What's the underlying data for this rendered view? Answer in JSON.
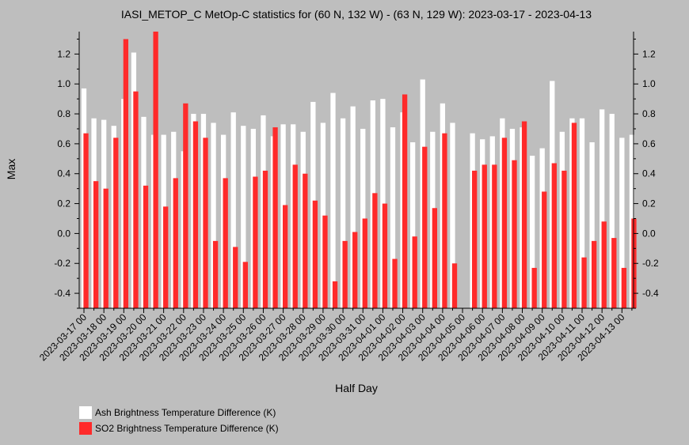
{
  "chart_data": {
    "type": "bar",
    "title": "IASI_METOP_C MetOp-C statistics for (60 N, 132 W) - (63 N, 129 W): 2023-03-17 - 2023-04-13",
    "xlabel": "Half Day",
    "ylabel": "Max",
    "ylim": [
      -0.5,
      1.35
    ],
    "yticks": [
      "-0.4",
      "-0.2",
      "0.0",
      "0.2",
      "0.4",
      "0.6",
      "0.8",
      "1.0",
      "1.2"
    ],
    "x_tick_labels": [
      "2023-03-17 00",
      "2023-03-18 00",
      "2023-03-19 00",
      "2023-03-20 00",
      "2023-03-21 00",
      "2023-03-22 00",
      "2023-03-23 00",
      "2023-03-24 00",
      "2023-03-25 00",
      "2023-03-26 00",
      "2023-03-27 00",
      "2023-03-28 00",
      "2023-03-29 00",
      "2023-03-30 00",
      "2023-03-31 00",
      "2023-04-01 00",
      "2023-04-02 00",
      "2023-04-03 00",
      "2023-04-04 00",
      "2023-04-05 00",
      "2023-04-06 00",
      "2023-04-07 00",
      "2023-04-08 00",
      "2023-04-09 00",
      "2023-04-10 00",
      "2023-04-11 00",
      "2023-04-12 00",
      "2023-04-13 00"
    ],
    "legend_placement": "bottom-left",
    "series": [
      {
        "name": "Ash Brightness Temperature Difference (K)",
        "color": "#ffffff",
        "values": [
          0.97,
          0.77,
          0.76,
          0.72,
          0.9,
          1.21,
          0.78,
          0.66,
          0.66,
          0.68,
          0.55,
          0.8,
          0.8,
          0.74,
          0.66,
          0.81,
          0.72,
          0.7,
          0.79,
          0.65,
          0.73,
          0.73,
          0.68,
          0.88,
          0.74,
          0.94,
          0.77,
          0.85,
          0.7,
          0.89,
          0.9,
          0.71,
          0.81,
          0.61,
          1.03,
          0.68,
          0.87,
          0.74,
          null,
          0.67,
          0.63,
          0.65,
          0.77,
          0.7,
          0.71,
          0.52,
          0.57,
          1.02,
          0.68,
          0.77,
          0.77,
          0.61,
          0.83,
          0.8,
          0.64,
          0.66
        ]
      },
      {
        "name": "SO2 Brightness Temperature Difference (K)",
        "color": "#ff2a2a",
        "values": [
          0.67,
          0.35,
          0.3,
          0.64,
          1.3,
          0.95,
          0.32,
          1.35,
          0.18,
          0.37,
          0.87,
          0.75,
          0.64,
          -0.05,
          0.37,
          -0.09,
          -0.19,
          0.38,
          0.42,
          0.71,
          0.19,
          0.46,
          0.4,
          0.22,
          0.12,
          -0.32,
          -0.05,
          0.01,
          0.1,
          0.27,
          0.2,
          -0.17,
          0.93,
          -0.02,
          0.58,
          0.17,
          0.67,
          -0.2,
          null,
          0.42,
          0.46,
          0.46,
          0.64,
          0.49,
          0.75,
          -0.23,
          0.28,
          0.47,
          0.42,
          0.74,
          -0.16,
          -0.05,
          0.08,
          -0.03,
          -0.23,
          0.1
        ]
      }
    ]
  }
}
